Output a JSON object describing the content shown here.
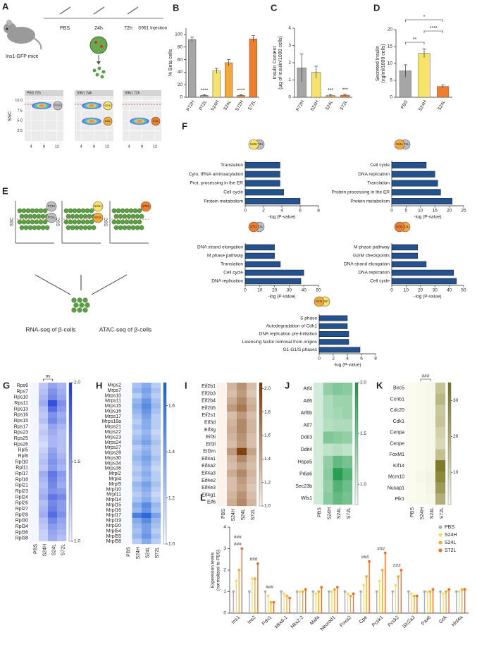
{
  "group_colors": {
    "P72H": "#bdbdbd",
    "P72L": "#bdbdbd",
    "S24H": "#f7e36b",
    "S24L": "#f2a93b",
    "S72H": "#ee7d2e",
    "S72L": "#ee7d2e"
  },
  "figure_a": {
    "letter": "A",
    "mouse_label": "Ins1-GFP mice",
    "timeline": [
      "PBS",
      "24h",
      "72h"
    ],
    "injection": "S961 Injection",
    "flow_plots": [
      {
        "title": "PBS 72h",
        "icons": [
          "P72H"
        ]
      },
      {
        "title": "S961 24h",
        "icons": [
          "S24H",
          "S24L"
        ]
      },
      {
        "title": "S961 72h",
        "icons": [
          "S72L"
        ]
      }
    ],
    "y_axis_label": "SSC",
    "ylim": [
      0,
      12.5
    ],
    "yticks": [
      2.5,
      {
        "value": 5,
        "label": "5.0"
      },
      7.5,
      {
        "value": 10,
        "label": "10.0"
      }
    ],
    "xlim": [
      2,
      14
    ],
    "xticks": [
      4,
      8,
      12
    ]
  },
  "figure_b": {
    "letter": "B",
    "type": "bar",
    "y_label": [
      "% Beta cells"
    ],
    "categories": [
      "P72H",
      "P72L",
      "S24H",
      "S24L",
      "S72H",
      "S72L"
    ],
    "values": [
      92,
      3,
      42,
      55,
      3,
      93
    ],
    "errors": [
      4,
      1,
      4,
      5,
      1,
      5
    ],
    "colors": [
      "#a6a6a6",
      "#a6a6a6",
      "#f7e36b",
      "#f2a93b",
      "#ee8a3a",
      "#ee7d2e"
    ],
    "ylim": [
      0,
      110
    ],
    "yticks": [
      0,
      20,
      40,
      60,
      80,
      100
    ],
    "annotations": [
      {
        "text": "****",
        "at": "P72L"
      },
      {
        "text": "****",
        "at": "S72H"
      }
    ]
  },
  "figure_c": {
    "letter": "C",
    "type": "bar",
    "y_label": [
      "Insulin Content",
      "(μg of insulin/1000 cells)"
    ],
    "categories": [
      "P72H",
      "S24H",
      "S24L",
      "S72L"
    ],
    "values": [
      1.7,
      1.45,
      0.1,
      0.12
    ],
    "errors": [
      0.8,
      0.35,
      0.05,
      0.05
    ],
    "colors": [
      "#a6a6a6",
      "#f7e36b",
      "#f2a93b",
      "#ee7d2e"
    ],
    "ylim": [
      0,
      4
    ],
    "yticks": [
      0,
      1,
      2,
      3,
      4
    ],
    "annotations": [
      {
        "text": "***",
        "at": "S24L"
      },
      {
        "text": "***",
        "at": "S72L"
      }
    ]
  },
  "figure_d": {
    "letter": "D",
    "type": "bar",
    "y_label": [
      "Secreted Insulin",
      "(ng/ml/1000 cells)"
    ],
    "categories": [
      "PBS",
      "S24H",
      "S24L"
    ],
    "values": [
      7.8,
      13,
      3.2
    ],
    "errors": [
      1.8,
      1.3,
      0.4
    ],
    "colors": [
      "#a6a6a6",
      "#f7e36b",
      "#ee7d2e"
    ],
    "ylim": [
      0,
      20
    ],
    "yticks": [
      0,
      5,
      10,
      15,
      20
    ],
    "annotations": [
      {
        "text": "**",
        "from": "PBS",
        "to": "S24H"
      },
      {
        "text": "****",
        "from": "S24H",
        "to": "S24L"
      },
      {
        "text": "*",
        "from": "PBS",
        "to": "S24L"
      }
    ]
  },
  "figure_e": {
    "letter": "E",
    "y_axis_label": "SSC",
    "plots": [
      [
        "P72H",
        "P72L"
      ],
      [
        "S24H",
        "S24L"
      ],
      [
        "S72L"
      ]
    ],
    "methods": [
      "RNA-seq of β-cells",
      "ATAC-seq of β-cells"
    ]
  },
  "figure_f": {
    "letter": "F",
    "color": "#24528f",
    "charts": [
      {
        "icons": [
          "S24H",
          "P72H"
        ],
        "terms": [
          "Translation",
          "Cyto. tRNA aminoacylation",
          "Prot. processing in the ER",
          "Cell cycle",
          "Protein metabolism"
        ],
        "values": [
          3.8,
          3.8,
          3.8,
          4.2,
          6
        ],
        "xlim": [
          0,
          8
        ],
        "xticks": [
          0,
          2,
          4,
          6,
          8
        ],
        "x_label": "-log (P-value)"
      },
      {
        "icons": [
          "S24L",
          "P72L"
        ],
        "terms": [
          "Cell cycle",
          "DNA replication",
          "Translation",
          "Protein processing in the ER",
          "Protein metabolism"
        ],
        "values": [
          12,
          15,
          16,
          17,
          21
        ],
        "xlim": [
          0,
          25
        ],
        "xticks": [
          0,
          5,
          10,
          15,
          20,
          25
        ],
        "x_label": "-log (P-value)"
      },
      {
        "icons": [
          "S72L",
          "P72L"
        ],
        "terms": [
          "DNA strand elongation",
          "M phase pathway",
          "Translation",
          "Cell cycle",
          "DNA replication"
        ],
        "values": [
          20,
          20,
          24,
          40,
          38
        ],
        "xlim": [
          0,
          50
        ],
        "xticks": [
          0,
          10,
          20,
          30,
          40,
          50
        ],
        "x_label": "-log (P-value)"
      },
      {
        "icons": [
          "S72L",
          "S24L"
        ],
        "terms": [
          "M phase pathway",
          "G2/M checkpoints",
          "DNA strand elongation",
          "DNA replication",
          "Cell cycle"
        ],
        "values": [
          18,
          18,
          24,
          43,
          45
        ],
        "xlim": [
          0,
          50
        ],
        "xticks": [
          0,
          10,
          20,
          30,
          40,
          50
        ],
        "x_label": "-log (P-value)"
      },
      {
        "icons": [
          "S24L",
          "S24H"
        ],
        "terms": [
          "S phase",
          "Autodegradation of Cdh1",
          "DNA replication pre-Initiation",
          "Licensing factor removal from origins",
          "G1-G1/S phases"
        ],
        "values": [
          4,
          4,
          4.2,
          4.2,
          5.8
        ],
        "xlim": [
          0,
          8
        ],
        "xticks": [
          0,
          2,
          4,
          6,
          8
        ],
        "x_label": "-log (P-value)"
      }
    ]
  },
  "figure_g": {
    "letter": "G",
    "type": "heatmap",
    "columns": [
      "PBS",
      "S24H",
      "S24L",
      "S72L"
    ],
    "annotation": "ns",
    "colors": [
      "#f4f6fe",
      "#1f3fd8"
    ],
    "vlim": [
      1,
      2
    ],
    "vticks": [
      {
        "value": 1,
        "label": "1.0"
      },
      1.5,
      {
        "value": 2,
        "label": "2.0"
      }
    ],
    "rows": [
      "Rps6",
      "Rps7",
      "Rps10",
      "Rps11",
      "Rps13",
      "Rps16",
      "Rps15",
      "Rps17",
      "Rps23",
      "Rps25",
      "Rps26",
      "Rpl5",
      "Rpl6",
      "Rpl10",
      "Rpl11",
      "Rpl17",
      "Rpl18",
      "Rpl21",
      "Rpl23",
      "Rpl24",
      "Rpl26",
      "Rpl27",
      "Rpl28",
      "Rpl30",
      "Rpl34",
      "Rpl36",
      "Rpl38"
    ],
    "values": [
      [
        1,
        1.25,
        1.45,
        1.35
      ],
      [
        1,
        1.3,
        1.55,
        1.4
      ],
      [
        1,
        1.35,
        1.6,
        1.45
      ],
      [
        1,
        1.4,
        1.9,
        1.55
      ],
      [
        1,
        1.3,
        1.75,
        1.5
      ],
      [
        1,
        1.25,
        1.55,
        1.4
      ],
      [
        1,
        1.3,
        1.6,
        1.45
      ],
      [
        1,
        1.2,
        1.45,
        1.35
      ],
      [
        1,
        1.25,
        1.4,
        1.3
      ],
      [
        1,
        1.2,
        1.35,
        1.3
      ],
      [
        1,
        1.15,
        1.35,
        1.3
      ],
      [
        1,
        1.2,
        1.45,
        1.3
      ],
      [
        1,
        1.25,
        1.5,
        1.35
      ],
      [
        1,
        1.3,
        1.55,
        1.4
      ],
      [
        1,
        1.25,
        1.5,
        1.35
      ],
      [
        1,
        1.4,
        1.7,
        1.5
      ],
      [
        1,
        1.35,
        1.65,
        1.45
      ],
      [
        1,
        1.3,
        1.6,
        1.4
      ],
      [
        1,
        1.35,
        1.55,
        1.5
      ],
      [
        1,
        1.4,
        1.7,
        1.6
      ],
      [
        1,
        1.3,
        1.6,
        1.5
      ],
      [
        1,
        1.35,
        1.65,
        1.5
      ],
      [
        1,
        1.4,
        1.75,
        1.55
      ],
      [
        1,
        1.3,
        1.6,
        1.45
      ],
      [
        1,
        1.25,
        1.5,
        1.4
      ],
      [
        1,
        1.2,
        1.45,
        1.35
      ],
      [
        1,
        1.2,
        1.4,
        1.3
      ]
    ]
  },
  "figure_h": {
    "letter": "H",
    "type": "heatmap",
    "columns": [
      "PBS",
      "S24H",
      "S24L",
      "S72L"
    ],
    "colors": [
      "#f6f9fe",
      "#1a5fd8"
    ],
    "vlim": [
      1,
      1.7
    ],
    "vticks": [
      {
        "value": 1,
        "label": "1.0"
      },
      1.2,
      1.4,
      1.6
    ],
    "rows": [
      "Mrps2",
      "Mrps7",
      "Mrps10",
      "Mrps11",
      "Mrps15",
      "Mrps16",
      "Mrps17",
      "Mrps18a",
      "Mrps21",
      "Mrps22",
      "Mrps23",
      "Mrps24",
      "Mrps27",
      "Mrps28",
      "Mrps30",
      "Mrps34",
      "Mrps36",
      "Mrpl2",
      "Mrpl4",
      "Mrpl9",
      "Mrpl10",
      "Mrpl11",
      "Mrpl14",
      "Mrpl15",
      "Mrpl16",
      "Mrpl17",
      "Mrpl19",
      "Mrpl20",
      "Mrpl54",
      "Mrpl55",
      "Mrpl58"
    ],
    "values": [
      [
        1,
        1.25,
        1.35,
        1.2
      ],
      [
        1,
        1.3,
        1.4,
        1.25
      ],
      [
        1,
        1.2,
        1.35,
        1.2
      ],
      [
        1,
        1.3,
        1.45,
        1.25
      ],
      [
        1,
        1.35,
        1.5,
        1.3
      ],
      [
        1,
        1.3,
        1.45,
        1.25
      ],
      [
        1,
        1.25,
        1.4,
        1.2
      ],
      [
        1,
        1.2,
        1.35,
        1.2
      ],
      [
        1,
        1.25,
        1.35,
        1.2
      ],
      [
        1,
        1.2,
        1.3,
        1.15
      ],
      [
        1,
        1.25,
        1.35,
        1.2
      ],
      [
        1,
        1.3,
        1.4,
        1.25
      ],
      [
        1,
        1.2,
        1.3,
        1.2
      ],
      [
        1,
        1.25,
        1.35,
        1.2
      ],
      [
        1,
        1.3,
        1.4,
        1.25
      ],
      [
        1,
        1.25,
        1.35,
        1.2
      ],
      [
        1,
        1.2,
        1.3,
        1.15
      ],
      [
        1,
        1.25,
        1.35,
        1.2
      ],
      [
        1,
        1.2,
        1.3,
        1.2
      ],
      [
        1,
        1.3,
        1.4,
        1.25
      ],
      [
        1,
        1.25,
        1.35,
        1.2
      ],
      [
        1,
        1.2,
        1.3,
        1.15
      ],
      [
        1,
        1.25,
        1.35,
        1.2
      ],
      [
        1,
        1.35,
        1.5,
        1.3
      ],
      [
        1,
        1.3,
        1.45,
        1.25
      ],
      [
        1,
        1.55,
        1.65,
        1.4
      ],
      [
        1,
        1.35,
        1.5,
        1.3
      ],
      [
        1,
        1.3,
        1.4,
        1.25
      ],
      [
        1,
        1.25,
        1.4,
        1.2
      ],
      [
        1,
        1.3,
        1.45,
        1.25
      ],
      [
        1,
        1.2,
        1.35,
        1.2
      ]
    ]
  },
  "figure_i": {
    "letter": "I",
    "type": "heatmap",
    "columns": [
      "PBS",
      "S24H",
      "S24L",
      "S72L"
    ],
    "colors": [
      "#fbf3ec",
      "#7a3a05"
    ],
    "vlim": [
      1,
      2.05
    ],
    "vticks": [
      {
        "value": 1,
        "label": "1.0"
      },
      1.2,
      1.4,
      1.6,
      1.8,
      {
        "value": 2,
        "label": "2.0"
      }
    ],
    "rows": [
      "Eif2b1",
      "Eif2b3",
      "Eif2b4",
      "Eif2b5",
      "Eif2s1",
      "Eif3d",
      "Eif3g",
      "Eif3i",
      "Eif3l",
      "Eif3m",
      "Eif4a1",
      "Eif4a2",
      "Eif4a3",
      "Eif4e2",
      "Eif4e3",
      "Eif4g1",
      "Eif6"
    ],
    "values": [
      [
        1,
        1.35,
        1.55,
        1.3
      ],
      [
        1,
        1.3,
        1.5,
        1.25
      ],
      [
        1,
        1.4,
        1.6,
        1.35
      ],
      [
        1,
        1.5,
        1.7,
        1.4
      ],
      [
        1,
        1.3,
        1.5,
        1.3
      ],
      [
        1,
        1.35,
        1.6,
        1.35
      ],
      [
        1,
        1.4,
        1.6,
        1.35
      ],
      [
        1,
        1.35,
        1.55,
        1.3
      ],
      [
        1,
        1.3,
        1.5,
        1.3
      ],
      [
        1,
        1.5,
        2,
        1.45
      ],
      [
        1,
        1.35,
        1.6,
        1.35
      ],
      [
        1,
        1.3,
        1.45,
        1.3
      ],
      [
        1,
        1.4,
        1.6,
        1.35
      ],
      [
        1,
        1.3,
        1.5,
        1.3
      ],
      [
        1,
        1.3,
        1.45,
        1.25
      ],
      [
        1,
        1.35,
        1.55,
        1.3
      ],
      [
        1,
        1.4,
        1.6,
        1.35
      ]
    ]
  },
  "figure_j": {
    "letter": "J",
    "type": "heatmap",
    "columns": [
      "PBS",
      "S24H",
      "S24L",
      "S72L"
    ],
    "colors": [
      "#f4fbf4",
      "#1e9a4a"
    ],
    "vlim": [
      0.8,
      2
    ],
    "vticks": [
      {
        "value": 1,
        "label": "1.0"
      },
      1.5,
      {
        "value": 2,
        "label": "2.0"
      }
    ],
    "rows": [
      "Atf4",
      "Atf6",
      "Atf6b",
      "Atf7",
      "Ddit3",
      "Ddit4",
      "Hspa5",
      "Pdia6",
      "Sec23b",
      "Wfs1"
    ],
    "values": [
      [
        1,
        1.35,
        1.45,
        1.4
      ],
      [
        1,
        1.2,
        1.3,
        1.3
      ],
      [
        1,
        1.2,
        1.25,
        1.3
      ],
      [
        1,
        1.15,
        1.2,
        1.2
      ],
      [
        1,
        1.45,
        1.4,
        1.35
      ],
      [
        1,
        1.1,
        1.15,
        1.1
      ],
      [
        1,
        1.35,
        1.6,
        1.5
      ],
      [
        1,
        1.4,
        1.95,
        1.7
      ],
      [
        1,
        1.35,
        1.7,
        1.55
      ],
      [
        1,
        1.4,
        1.6,
        1.5
      ]
    ]
  },
  "figure_k": {
    "letter": "K",
    "type": "heatmap",
    "columns": [
      "PBS",
      "S24H",
      "S24L",
      "S72L"
    ],
    "annotation": "###",
    "colors": [
      "#fbfbef",
      "#75751a"
    ],
    "vlim": [
      1,
      35
    ],
    "vticks": [
      10,
      20,
      30
    ],
    "rows": [
      "Birc5",
      "Ccnb1",
      "Cdc20",
      "Cdk1",
      "Cenpa",
      "Cenpe",
      "FoxM1",
      "Kif14",
      "Mcm10",
      "Nusap1",
      "Plk1"
    ],
    "values": [
      [
        1,
        1.5,
        2,
        15
      ],
      [
        1,
        1.5,
        2,
        18
      ],
      [
        1,
        1.5,
        2,
        14
      ],
      [
        1,
        1.5,
        2,
        15
      ],
      [
        1,
        1.5,
        2,
        12
      ],
      [
        1,
        1.5,
        2,
        10
      ],
      [
        1,
        1.5,
        2,
        16
      ],
      [
        1,
        1.5,
        2,
        33
      ],
      [
        1,
        2,
        3,
        30
      ],
      [
        1,
        1.5,
        2.5,
        25
      ],
      [
        1,
        1.5,
        2,
        20
      ]
    ]
  },
  "figure_l": {
    "letter": "L",
    "type": "dot",
    "y_label": [
      "Expression levels",
      "(normalized to PBS)"
    ],
    "legend": "upper right",
    "categories": [
      "Ins1",
      "Ins2",
      "Pdx1",
      "Nkx6-1",
      "Nkx2-2",
      "Mafa",
      "Neurod1",
      "Foxa2",
      "Cpe",
      "Pcsk1",
      "Pcsk2",
      "Slc2a2",
      "Pax6",
      "Gck",
      "Hnf4a"
    ],
    "series": [
      {
        "name": "PBS",
        "color": "#a8aec2",
        "values": [
          1,
          1,
          1,
          1,
          1,
          1,
          1,
          1,
          1,
          1,
          1,
          1,
          1,
          1,
          1
        ]
      },
      {
        "name": "S24H",
        "color": "#f5dc6a",
        "values": [
          1.5,
          1.6,
          0.8,
          0.9,
          1,
          0.9,
          1,
          0.9,
          1.3,
          1.5,
          1.3,
          0.9,
          1,
          0.9,
          1
        ]
      },
      {
        "name": "S24L",
        "color": "#f2a93b",
        "values": [
          2,
          1.6,
          0.5,
          0.8,
          1,
          1,
          1.1,
          0.8,
          1.7,
          2,
          1.7,
          0.8,
          1,
          1,
          1.1
        ]
      },
      {
        "name": "S72L",
        "color": "#e8702a",
        "values": [
          3,
          2.3,
          0.5,
          0.7,
          1.1,
          1.2,
          1.2,
          0.9,
          2.4,
          2.8,
          2,
          0.8,
          1.1,
          1.1,
          1.1
        ]
      }
    ],
    "ylim": [
      0,
      4
    ],
    "yticks": [
      0,
      1,
      2,
      3,
      4
    ],
    "annotations": [
      {
        "text": "###",
        "at": "Ins1"
      },
      {
        "text": "###",
        "at": "Ins1"
      },
      {
        "text": "###",
        "at": "Ins2"
      },
      {
        "text": "###",
        "at": "Pdx1"
      },
      {
        "text": "###",
        "at": "Cpe"
      },
      {
        "text": "###",
        "at": "Pcsk1"
      },
      {
        "text": "###",
        "at": "Pcsk2"
      }
    ]
  }
}
